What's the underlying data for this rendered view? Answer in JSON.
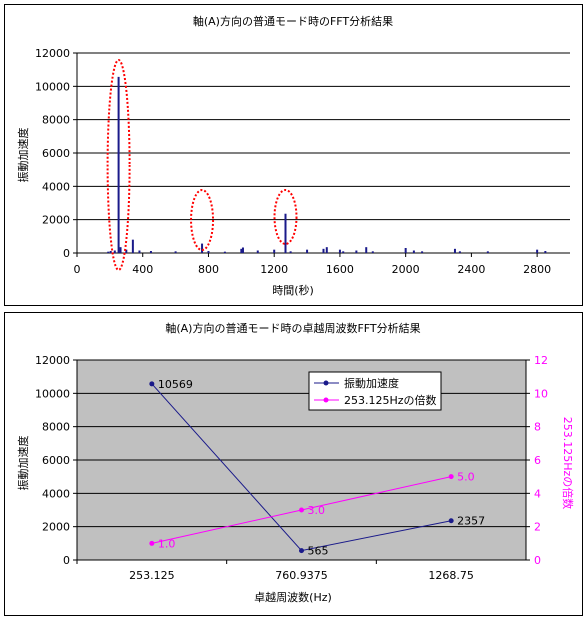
{
  "chart_data": [
    {
      "type": "bar",
      "title": "軸(A)方向の普通モード時のFFT分析結果",
      "xlabel": "時間(秒)",
      "ylabel": "振動加速度",
      "xlim": [
        0,
        3000
      ],
      "ylim": [
        0,
        12000
      ],
      "x_ticks": [
        "0",
        "400",
        "800",
        "1200",
        "1600",
        "2000",
        "2400",
        "2800"
      ],
      "y_ticks": [
        "0",
        "2000",
        "4000",
        "6000",
        "8000",
        "10000",
        "12000"
      ],
      "grid": true,
      "bar_color": "#1a1a8a",
      "points": [
        [
          190,
          80
        ],
        [
          205,
          120
        ],
        [
          230,
          150
        ],
        [
          253.125,
          10569
        ],
        [
          265,
          350
        ],
        [
          300,
          200
        ],
        [
          340,
          800
        ],
        [
          380,
          150
        ],
        [
          450,
          120
        ],
        [
          600,
          100
        ],
        [
          760.9375,
          565
        ],
        [
          800,
          120
        ],
        [
          900,
          80
        ],
        [
          1000,
          250
        ],
        [
          1010,
          330
        ],
        [
          1100,
          150
        ],
        [
          1200,
          200
        ],
        [
          1268.75,
          2357
        ],
        [
          1300,
          100
        ],
        [
          1400,
          200
        ],
        [
          1500,
          250
        ],
        [
          1520,
          350
        ],
        [
          1600,
          200
        ],
        [
          1620,
          100
        ],
        [
          1700,
          150
        ],
        [
          1760,
          350
        ],
        [
          1800,
          100
        ],
        [
          2000,
          300
        ],
        [
          2050,
          150
        ],
        [
          2100,
          100
        ],
        [
          2300,
          250
        ],
        [
          2330,
          100
        ],
        [
          2500,
          100
        ],
        [
          2800,
          200
        ],
        [
          2850,
          120
        ]
      ],
      "annotations": [
        {
          "type": "dotted-ellipse",
          "x": 253.125,
          "color": "#ff0000"
        },
        {
          "type": "dotted-ellipse",
          "x": 760.9375,
          "color": "#ff0000"
        },
        {
          "type": "dotted-ellipse",
          "x": 1268.75,
          "color": "#ff0000"
        }
      ]
    },
    {
      "type": "line",
      "title": "軸(A)方向の普通モード時の卓越周波数FFT分析結果",
      "xlabel": "卓越周波数(Hz)",
      "ylabel": "振動加速度",
      "y2label": "253.125Hzの倍数",
      "categories": [
        "253.125",
        "760.9375",
        "1268.75"
      ],
      "ylim": [
        0,
        12000
      ],
      "y2lim": [
        0,
        12
      ],
      "y_ticks": [
        "0",
        "2000",
        "4000",
        "6000",
        "8000",
        "10000",
        "12000"
      ],
      "y2_ticks": [
        "0",
        "2",
        "4",
        "6",
        "8",
        "10",
        "12"
      ],
      "grid": true,
      "legend_position": "top-right",
      "series": [
        {
          "name": "振動加速度",
          "values": [
            10569,
            565,
            2357
          ],
          "labels": [
            "10569",
            "565",
            "2357"
          ],
          "axis": "left",
          "color": "#1a1a8a"
        },
        {
          "name": "253.125Hzの倍数",
          "values": [
            1.0,
            3.0,
            5.0
          ],
          "labels": [
            "1.0",
            "3.0",
            "5.0"
          ],
          "axis": "right",
          "color": "#ff00ff"
        }
      ]
    }
  ]
}
